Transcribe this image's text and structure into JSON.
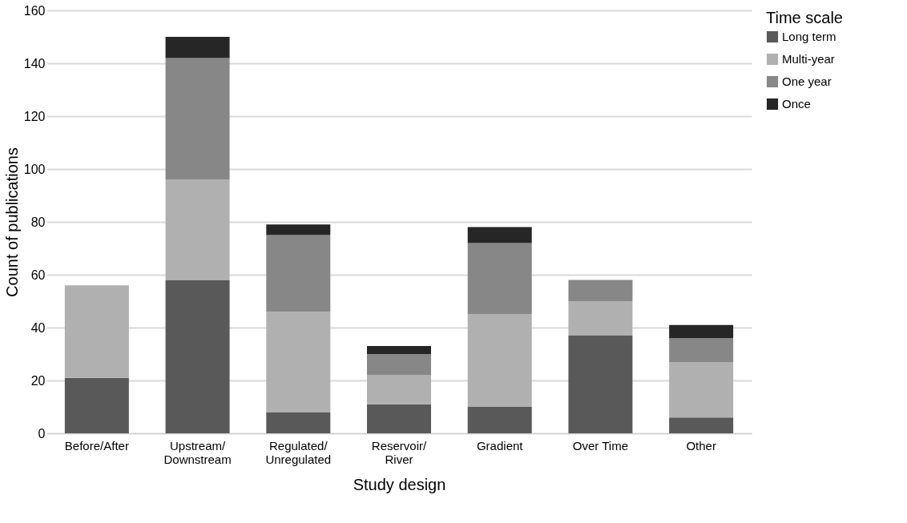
{
  "chart_data": {
    "type": "bar",
    "stacked": true,
    "xlabel": "Study design",
    "ylabel": "Count of publications",
    "legend_title": "Time scale",
    "legend": "right",
    "grid": "y",
    "categories": [
      "Before/After",
      "Upstream/Downstream",
      "Regulated/Unregulated",
      "Reservoir/River",
      "Gradient",
      "Over Time",
      "Other"
    ],
    "ylim": [
      0,
      160
    ],
    "yticks": [
      0,
      20,
      40,
      60,
      80,
      100,
      120,
      140,
      160
    ],
    "series": [
      {
        "name": "Long term",
        "color": "#595959",
        "values": [
          21,
          58,
          8,
          11,
          10,
          37,
          6
        ]
      },
      {
        "name": "Multi-year",
        "color": "#b0b0b0",
        "values": [
          35,
          38,
          38,
          11,
          35,
          13,
          21
        ]
      },
      {
        "name": "One year",
        "color": "#878787",
        "values": [
          0,
          46,
          29,
          8,
          27,
          8,
          9
        ]
      },
      {
        "name": "Once",
        "color": "#262626",
        "values": [
          0,
          8,
          4,
          3,
          6,
          0,
          5
        ]
      }
    ]
  }
}
